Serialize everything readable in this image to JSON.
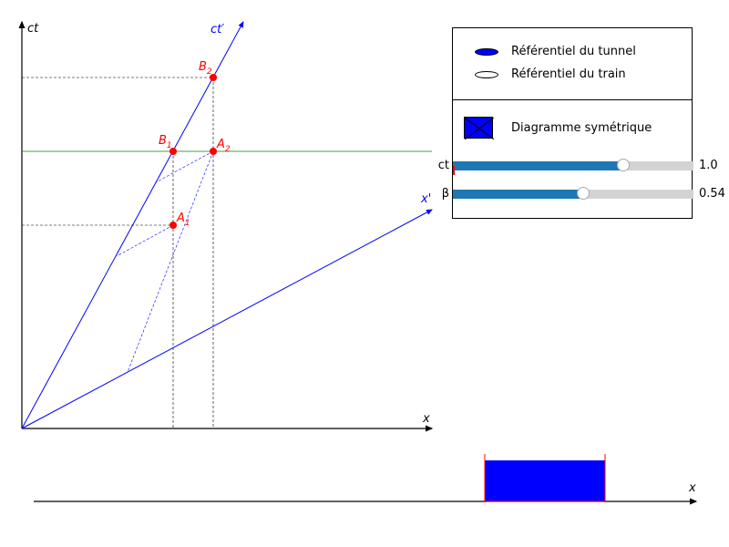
{
  "diagram": {
    "axis_ct": "ct",
    "axis_x": "x",
    "axis_ct_prime": "ct′",
    "axis_x_prime": "x'",
    "points": {
      "A1": {
        "base": "A",
        "sub": "1"
      },
      "A2": {
        "base": "A",
        "sub": "2"
      },
      "B1": {
        "base": "B",
        "sub": "1"
      },
      "B2": {
        "base": "B",
        "sub": "2"
      }
    }
  },
  "controls": {
    "radio": [
      {
        "label": "Référentiel du tunnel",
        "selected": true
      },
      {
        "label": "Référentiel du train",
        "selected": false
      }
    ],
    "checkbox": {
      "label": "Diagramme symétrique",
      "checked": true
    },
    "sliders": [
      {
        "name": "ct",
        "value_text": "1.0",
        "fraction": 0.71
      },
      {
        "name": "β",
        "value_text": "0.54",
        "fraction": 0.54
      }
    ]
  },
  "bottom_axis": {
    "label": "x"
  },
  "colors": {
    "axes": "#000000",
    "frame_lines": "#0000ff",
    "events": "#ff0000",
    "simultaneity_line": "#008000",
    "tunnel_block": "#0000ff",
    "tunnel_edges": "#ff0000",
    "slider_fill": "#1f77b4",
    "slider_track": "#d3d3d3"
  }
}
